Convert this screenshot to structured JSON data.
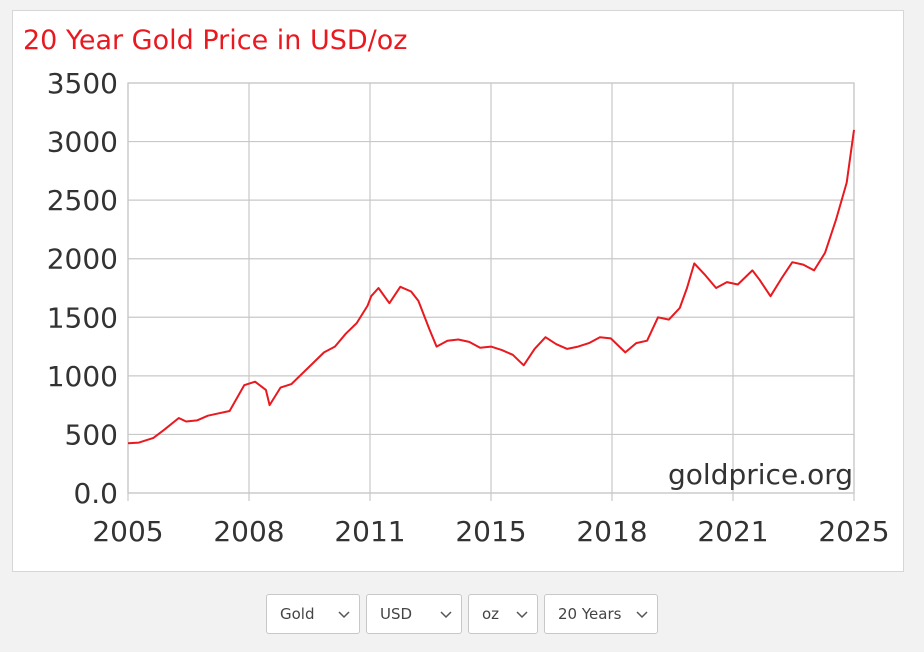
{
  "chart_data": {
    "type": "line",
    "title": "20 Year Gold Price in USD/oz",
    "xlabel": "",
    "ylabel": "",
    "watermark": "goldprice.org",
    "x_tick_labels": [
      "2005",
      "2008",
      "2011",
      "2015",
      "2018",
      "2021",
      "2025"
    ],
    "y_tick_labels": [
      "0.0",
      "500",
      "1000",
      "1500",
      "2000",
      "2500",
      "3000",
      "3500"
    ],
    "ylim": [
      0,
      3500
    ],
    "xlim": [
      2005,
      2025
    ],
    "grid": true,
    "line_color": "#e8191f",
    "title_color": "#e8191f",
    "series": [
      {
        "x": [
          2005.0,
          2005.3,
          2005.7,
          2006.0,
          2006.4,
          2006.6,
          2006.9,
          2007.2,
          2007.5,
          2007.8,
          2008.2,
          2008.5,
          2008.8,
          2008.9,
          2009.2,
          2009.5,
          2009.9,
          2010.1,
          2010.4,
          2010.7,
          2011.0,
          2011.3,
          2011.6,
          2011.7,
          2011.9,
          2012.2,
          2012.5,
          2012.8,
          2013.0,
          2013.3,
          2013.5,
          2013.8,
          2014.1,
          2014.4,
          2014.7,
          2015.0,
          2015.3,
          2015.6,
          2015.9,
          2016.2,
          2016.5,
          2016.8,
          2017.1,
          2017.4,
          2017.7,
          2018.0,
          2018.3,
          2018.7,
          2019.0,
          2019.3,
          2019.6,
          2019.9,
          2020.2,
          2020.4,
          2020.6,
          2020.9,
          2021.2,
          2021.5,
          2021.8,
          2022.2,
          2022.4,
          2022.7,
          2023.0,
          2023.3,
          2023.6,
          2023.9,
          2024.2,
          2024.5,
          2024.8,
          2025.0
        ],
        "y": [
          425,
          430,
          470,
          540,
          640,
          610,
          620,
          660,
          680,
          700,
          920,
          950,
          880,
          750,
          900,
          930,
          1050,
          1110,
          1200,
          1250,
          1360,
          1450,
          1600,
          1680,
          1750,
          1620,
          1760,
          1720,
          1640,
          1400,
          1250,
          1300,
          1310,
          1290,
          1240,
          1250,
          1220,
          1180,
          1090,
          1230,
          1330,
          1270,
          1230,
          1250,
          1280,
          1330,
          1320,
          1200,
          1280,
          1300,
          1500,
          1480,
          1580,
          1750,
          1960,
          1860,
          1750,
          1800,
          1780,
          1900,
          1820,
          1680,
          1830,
          1970,
          1950,
          1900,
          2050,
          2330,
          2650,
          3100
        ]
      }
    ]
  },
  "controls": {
    "metal": {
      "value": "Gold",
      "icon": "chevron-down-icon"
    },
    "currency": {
      "value": "USD",
      "icon": "chevron-down-icon"
    },
    "unit": {
      "value": "oz",
      "icon": "chevron-down-icon"
    },
    "period": {
      "value": "20 Years",
      "icon": "chevron-down-icon"
    }
  }
}
